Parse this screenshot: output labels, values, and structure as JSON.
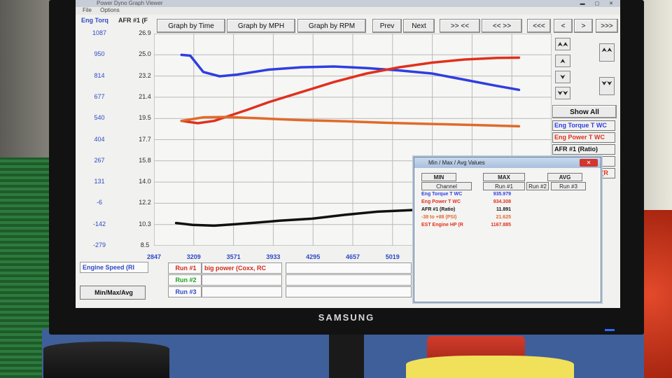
{
  "monitor": {
    "brand": "SAMSUNG"
  },
  "window": {
    "title": "Power Dyno Graph Viewer",
    "menu": [
      "File",
      "Options"
    ]
  },
  "header": {
    "left_axis": "Eng Torq",
    "right_axis": "AFR #1 (F"
  },
  "toolbar": {
    "graph_time": "Graph by Time",
    "graph_mph": "Graph by MPH",
    "graph_rpm": "Graph by RPM",
    "prev": "Prev",
    "next": "Next",
    "zoom_in": ">> <<",
    "zoom_out": "<< >>",
    "first": "<<<",
    "left": "<",
    "right": ">",
    "last": ">>>"
  },
  "side": {
    "show_all": "Show All",
    "up2": "⮝⮝",
    "up": "⮝",
    "down": "⮟",
    "down2": "⮟⮟"
  },
  "colors": {
    "torque": "#2f3ee0",
    "power": "#e0301e",
    "afr": "#111111",
    "boost": "#e06a2a",
    "grid": "#b9b9b9"
  },
  "chart_data": {
    "type": "line",
    "xlabel": "Engine Speed (RI",
    "x_ticks": [
      "2847",
      "3209",
      "3571",
      "3933",
      "4295",
      "4657",
      "5019"
    ],
    "left_ticks": [
      "1087",
      "950",
      "814",
      "677",
      "540",
      "404",
      "267",
      "131",
      "-6",
      "-142",
      "-279"
    ],
    "right_ticks": [
      "26.9",
      "25.0",
      "23.2",
      "21.4",
      "19.5",
      "17.7",
      "15.8",
      "14.0",
      "12.2",
      "10.3",
      "8.5"
    ],
    "xlim": [
      2847,
      6500
    ],
    "ylim": [
      -279,
      1087
    ],
    "series": [
      {
        "name": "Eng Torque T WC",
        "color": "#2f3ee0",
        "x": [
          3100,
          3180,
          3300,
          3450,
          3600,
          3900,
          4200,
          4500,
          4800,
          5100,
          5400,
          5700,
          6000,
          6200
        ],
        "y": [
          950,
          945,
          840,
          812,
          822,
          855,
          870,
          875,
          865,
          850,
          830,
          790,
          750,
          725
        ]
      },
      {
        "name": "Eng Power T WC",
        "color": "#e0301e",
        "x": [
          3100,
          3250,
          3400,
          3550,
          3700,
          3900,
          4200,
          4500,
          4800,
          5100,
          5400,
          5700,
          6000,
          6200
        ],
        "y": [
          525,
          510,
          525,
          560,
          595,
          645,
          710,
          775,
          830,
          870,
          900,
          920,
          930,
          932
        ]
      },
      {
        "name": "AFR #1 (Ratio)",
        "color": "#111111",
        "x": [
          3050,
          3200,
          3400,
          3600,
          3800,
          4000,
          4300,
          4600,
          4900,
          5200,
          5380
        ],
        "y": [
          -133,
          -145,
          -150,
          -140,
          -130,
          -118,
          -105,
          -80,
          -60,
          -50,
          -45
        ]
      },
      {
        "name": "-38 to +88 (PSI)",
        "color": "#e06a2a",
        "x": [
          3100,
          3300,
          3500,
          3800,
          4200,
          4600,
          5000,
          5400,
          5800,
          6200
        ],
        "y": [
          525,
          548,
          550,
          542,
          530,
          522,
          512,
          505,
          498,
          490
        ]
      }
    ],
    "legend_entries": [
      "Eng Torque T WC",
      "Eng Power T WC",
      "AFR #1 (Ratio)",
      "-38 to +88 (PSI)",
      "EST Engine HP (R"
    ]
  },
  "runs": [
    {
      "label": "Run #1",
      "desc": "big power (Coxx, RC",
      "color": "#d12a1a"
    },
    {
      "label": "Run #2",
      "desc": "",
      "color": "#20a020"
    },
    {
      "label": "Run #3",
      "desc": "",
      "color": "#2f49c6"
    }
  ],
  "footer": {
    "minmax_button": "Min/Max/Avg"
  },
  "popup": {
    "title": "Min / Max / Avg Values",
    "min": "MIN",
    "max": "MAX",
    "avg": "AVG",
    "channel": "Channel",
    "run1": "Run #1",
    "run2": "Run #2",
    "run3": "Run #3",
    "rows": [
      {
        "name": "Eng Torque T WC",
        "value": "935.979",
        "color": "#2f3ee0"
      },
      {
        "name": "Eng Power T WC",
        "value": "934.308",
        "color": "#e0301e"
      },
      {
        "name": "AFR #1 (Ratio)",
        "value": "11.891",
        "color": "#111111"
      },
      {
        "name": "-38 to +88 (PSI)",
        "value": "21.625",
        "color": "#e06a2a"
      },
      {
        "name": "EST Engine HP (R",
        "value": "1167.885",
        "color": "#e0301e"
      }
    ]
  }
}
